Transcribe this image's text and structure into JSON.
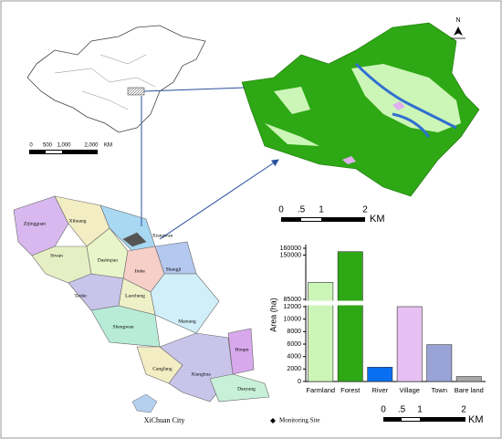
{
  "china_map": {
    "scale_labels": [
      "0",
      "500",
      "1,000",
      "2,000",
      "KM"
    ]
  },
  "detail_map": {
    "north": "N",
    "scale_labels": [
      "0",
      ".5",
      "1",
      "2",
      "KM"
    ]
  },
  "county_map": {
    "towns": [
      "Zijingguan",
      "Xihuang",
      "Siwan",
      "Dashiqiao",
      "Jinhe",
      "Xiangwan",
      "Shangji",
      "Taohe",
      "Laocheng",
      "Maotang",
      "Shengwan",
      "Houpo",
      "Cangfang",
      "Xianghua",
      "Danyang"
    ],
    "caption": "XiChuan City",
    "legend": "Monitoring Site"
  },
  "chart_data": {
    "type": "bar",
    "ylabel": "Area (ha)",
    "categories": [
      "Farmland",
      "Forest",
      "River",
      "Village",
      "Town",
      "Bare land"
    ],
    "values": [
      110000,
      155000,
      2300,
      12200,
      5900,
      800
    ],
    "colors": [
      "#ccf5b8",
      "#2ea814",
      "#0a6ef0",
      "#e6c0f2",
      "#9aa3d6",
      "#a8a8a8"
    ],
    "ylim": [
      0,
      160000
    ],
    "ybreak": [
      12000,
      85000
    ],
    "yticks": [
      0,
      2000,
      4000,
      6000,
      8000,
      10000,
      12000,
      85000,
      150000,
      160000
    ]
  },
  "bottom_scale": {
    "scale_labels": [
      "0",
      ".5",
      "1",
      "2",
      "KM"
    ]
  }
}
